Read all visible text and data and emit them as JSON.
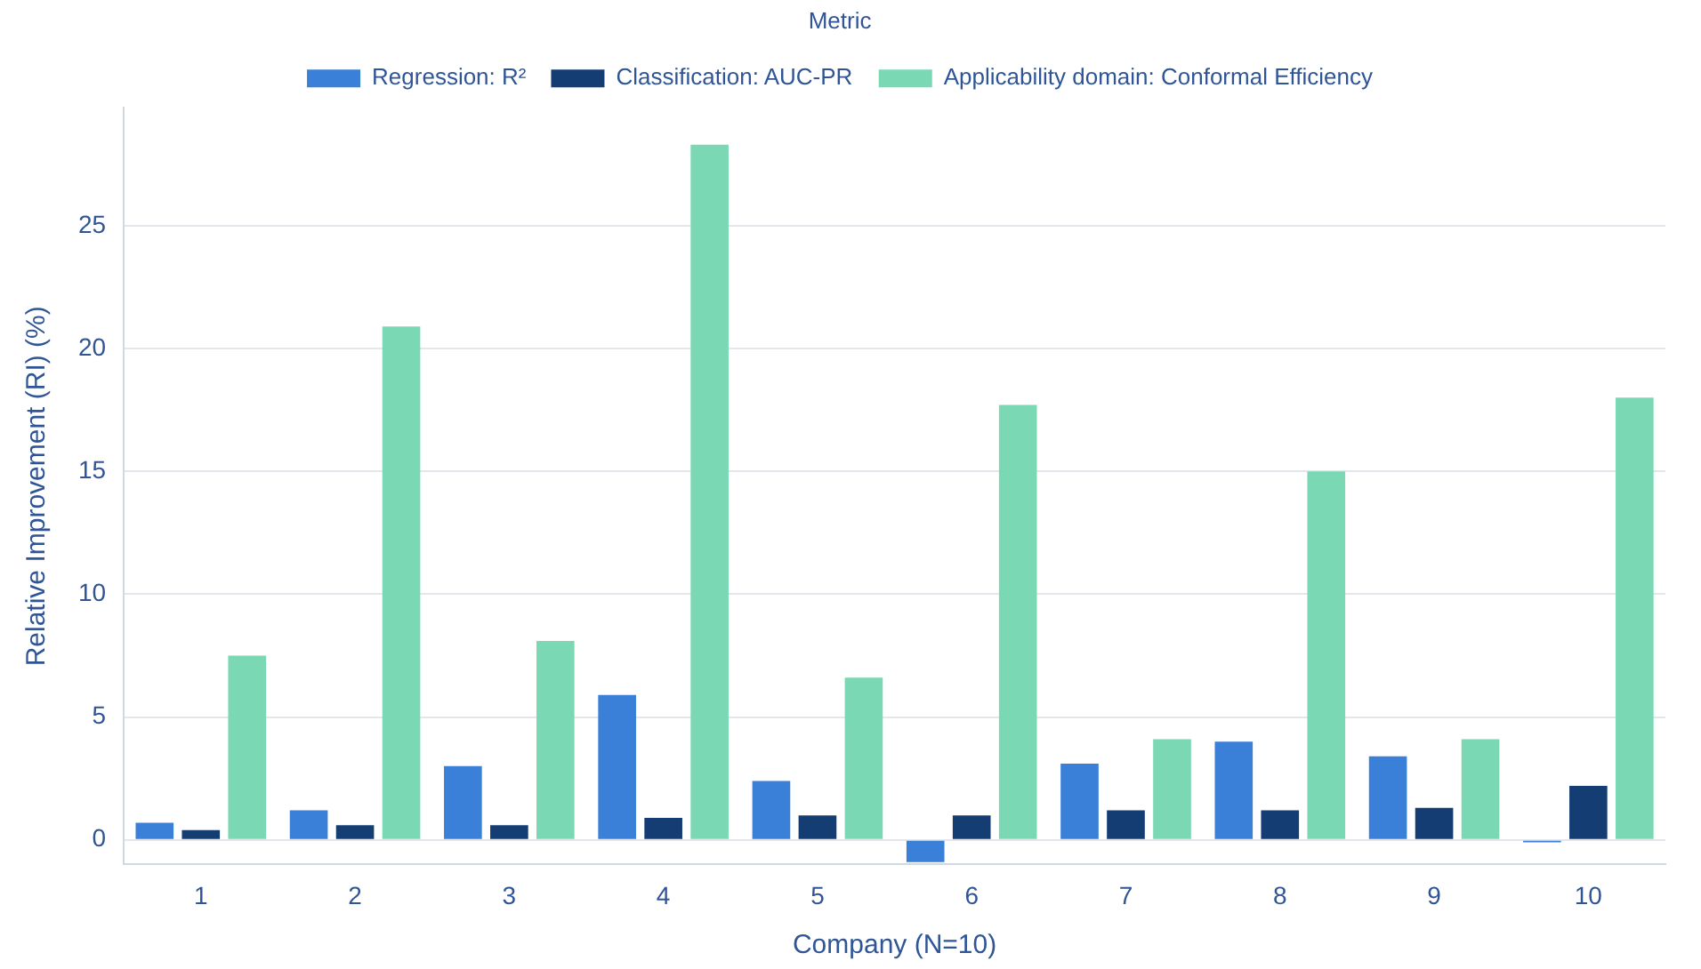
{
  "chart_data": {
    "type": "bar",
    "xlabel": "Company (N=10)",
    "ylabel": "Relative Improvement (RI) (%)",
    "legend_title": "Metric",
    "categories": [
      "1",
      "2",
      "3",
      "4",
      "5",
      "6",
      "7",
      "8",
      "9",
      "10"
    ],
    "series": [
      {
        "name": "Regression: R²",
        "color": "#3a7fd8",
        "values": [
          0.7,
          1.2,
          3.0,
          5.9,
          2.4,
          -0.9,
          3.1,
          4.0,
          3.4,
          -0.1
        ]
      },
      {
        "name": "Classification: AUC-PR",
        "color": "#143d74",
        "values": [
          0.4,
          0.6,
          0.6,
          0.9,
          1.0,
          1.0,
          1.2,
          1.2,
          1.3,
          2.2
        ]
      },
      {
        "name": "Applicability domain: Conformal Efficiency",
        "color": "#7ad9b4",
        "values": [
          7.5,
          20.9,
          8.1,
          28.3,
          6.6,
          17.7,
          4.1,
          15.0,
          4.1,
          18.0
        ]
      }
    ],
    "ylim": [
      -1,
      29.8
    ],
    "yticks": [
      0,
      5,
      10,
      15,
      20,
      25
    ],
    "grid": "y",
    "legend": "top"
  }
}
